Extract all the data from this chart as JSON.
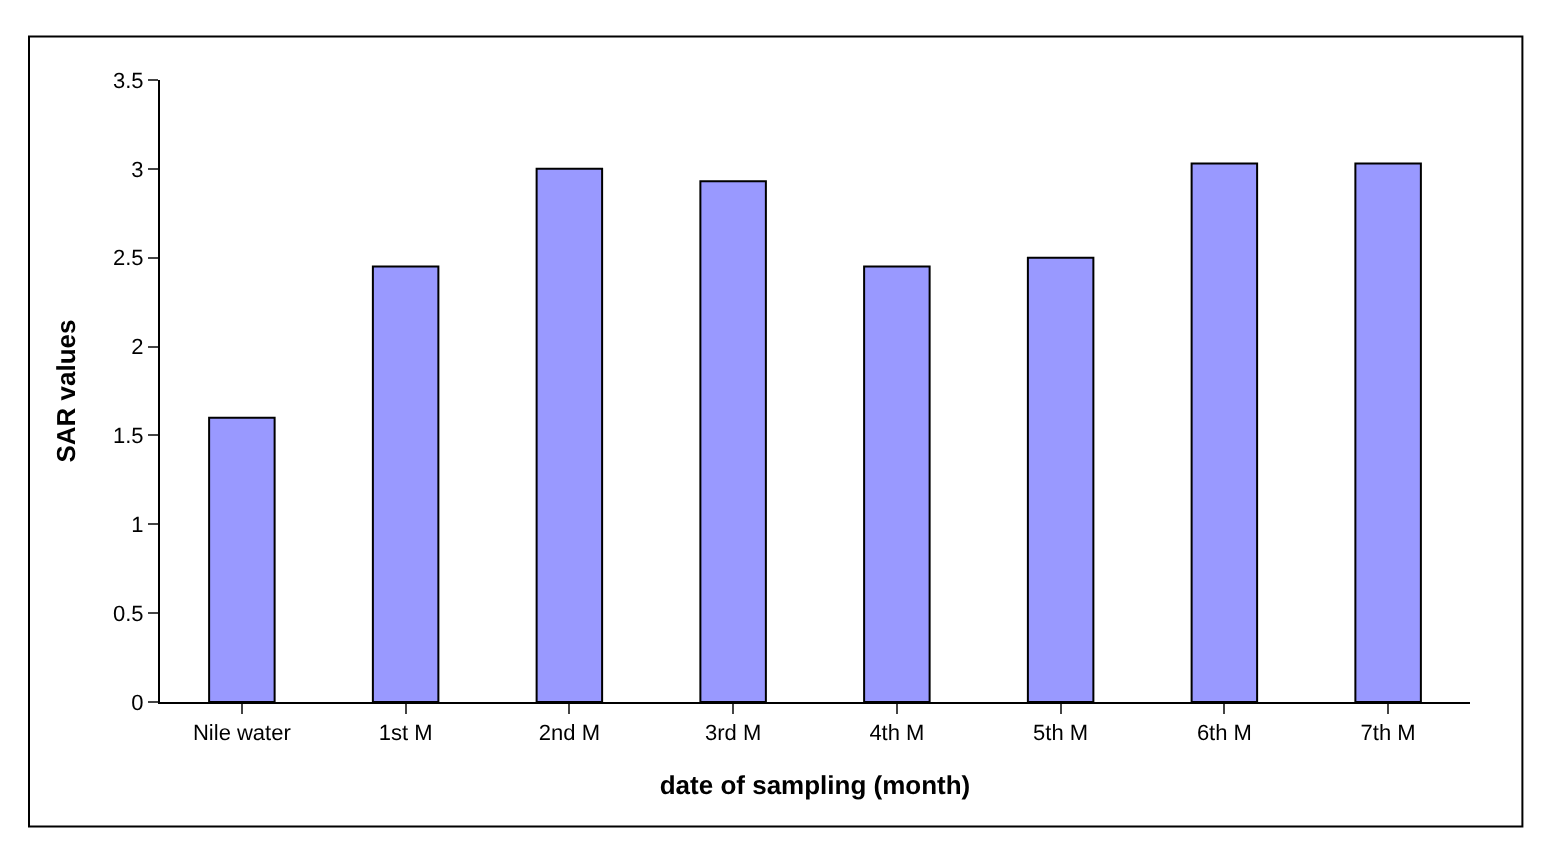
{
  "chart_data": {
    "type": "bar",
    "xlabel": "date of sampling (month)",
    "ylabel": "SAR values",
    "categories": [
      "Nile water",
      "1st M",
      "2nd M",
      "3rd M",
      "4th M",
      "5th M",
      "6th M",
      "7th M"
    ],
    "values": [
      1.6,
      2.45,
      3.0,
      2.93,
      2.45,
      2.5,
      3.03,
      3.03
    ],
    "color": "#9999ff",
    "ylim": [
      0,
      3.5
    ],
    "yticks": [
      0,
      0.5,
      1,
      1.5,
      2,
      2.5,
      3,
      3.5
    ]
  }
}
